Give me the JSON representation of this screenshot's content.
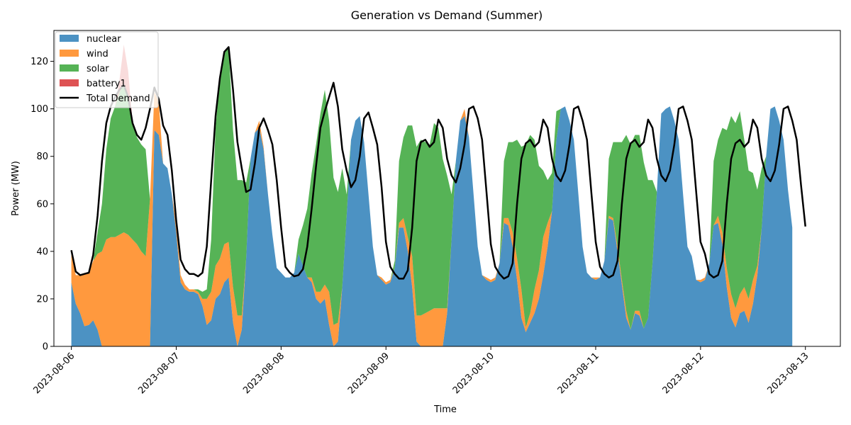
{
  "chart_data": {
    "type": "area",
    "title": "Generation vs Demand (Summer)",
    "xlabel": "Time",
    "ylabel": "Power (MW)",
    "xlim": [
      "2023-08-05T20:00",
      "2023-08-13T08:00"
    ],
    "ylim": [
      0,
      133
    ],
    "y_ticks": [
      0,
      20,
      40,
      60,
      80,
      100,
      120
    ],
    "x_ticks": [
      "2023-08-06",
      "2023-08-07",
      "2023-08-08",
      "2023-08-09",
      "2023-08-10",
      "2023-08-11",
      "2023-08-12",
      "2023-08-13"
    ],
    "x_start": "2023-08-06T00:00",
    "x_step_hours": 1,
    "grid": false,
    "legend_position": "top-left",
    "series": [
      {
        "name": "nuclear",
        "color": "#1f77b4",
        "values": [
          27,
          18,
          14,
          8.5,
          9,
          11,
          7,
          0,
          0,
          0,
          0,
          0,
          0,
          0,
          0,
          0,
          0,
          0,
          0,
          91,
          89,
          77,
          75,
          64,
          48,
          27,
          24,
          23,
          23,
          22,
          17,
          9,
          11,
          20,
          22,
          27,
          29,
          10,
          0,
          7,
          37,
          79,
          90,
          92,
          83,
          64,
          47,
          33,
          31,
          29,
          29,
          31,
          39,
          34,
          29,
          27,
          20,
          18,
          20,
          9,
          0,
          2,
          25,
          55,
          87,
          95,
          97,
          86,
          64,
          42,
          30,
          28,
          26,
          27,
          33,
          50,
          50,
          40,
          25,
          2,
          0,
          0,
          0,
          0,
          0,
          0,
          14,
          45,
          78,
          95,
          97,
          88,
          65,
          42,
          30,
          28,
          27,
          28,
          35,
          52,
          51,
          42,
          28,
          12,
          6,
          10,
          14,
          20,
          30,
          42,
          57,
          87,
          100,
          101,
          95,
          87,
          65,
          42,
          31,
          29,
          28,
          29,
          36,
          54,
          53,
          40,
          26,
          12,
          7,
          14,
          13,
          7.5,
          12,
          35,
          65,
          98,
          100,
          101,
          95,
          87,
          64,
          42,
          38,
          28,
          27,
          28,
          35,
          51,
          52,
          43,
          25,
          12,
          8,
          14,
          15,
          10,
          18,
          30,
          50,
          80,
          100,
          101,
          95,
          87,
          66,
          50
        ]
      },
      {
        "name": "wind",
        "color": "#ff7f0e",
        "values": [
          12,
          12,
          16,
          22,
          22,
          25,
          32,
          40,
          45,
          46,
          46,
          47,
          48,
          47,
          45,
          43,
          40,
          38,
          62,
          16,
          14,
          0,
          0,
          0,
          4,
          3,
          2,
          1,
          1,
          1,
          3,
          11,
          12,
          14,
          15,
          16,
          15,
          15,
          13,
          6,
          0,
          0,
          0,
          3,
          1,
          0,
          0,
          0,
          0,
          0,
          0,
          0,
          0,
          0,
          0,
          2,
          3,
          5,
          6,
          14,
          9,
          8,
          0,
          0,
          0,
          0,
          0,
          0,
          0,
          0,
          0,
          1,
          1,
          1,
          0,
          2,
          4,
          6,
          13,
          11,
          13,
          14,
          15,
          16,
          16,
          16,
          2,
          0,
          0,
          0,
          3,
          0,
          0,
          0,
          0,
          1,
          1,
          1,
          0,
          2,
          3,
          6,
          9,
          12,
          2,
          4,
          10,
          12,
          16,
          10,
          0,
          0,
          0,
          0,
          0,
          0,
          0,
          0,
          0,
          0,
          1,
          0,
          0,
          1,
          1,
          2,
          2,
          3,
          0,
          1,
          2,
          0,
          0,
          0,
          0,
          0,
          0,
          0,
          0,
          0,
          0,
          0,
          0,
          0,
          1,
          1,
          0,
          0,
          3,
          5,
          8,
          10,
          8,
          8,
          10,
          10,
          10,
          4,
          0,
          0,
          0,
          0,
          0,
          0,
          0,
          0,
          0,
          0
        ]
      },
      {
        "name": "solar",
        "color": "#2ca02c",
        "values": [
          0,
          0,
          0,
          0,
          0,
          0,
          9,
          20,
          38,
          50,
          55,
          60,
          62,
          58,
          49,
          45,
          45,
          45,
          0,
          0,
          0,
          0,
          0,
          0,
          0,
          0,
          0,
          0,
          0,
          1,
          3,
          4,
          22,
          58,
          76,
          81,
          82,
          66,
          57,
          57,
          32,
          0,
          0,
          0,
          0,
          0,
          0,
          0,
          0,
          0,
          0,
          0,
          6,
          17,
          29,
          44,
          62,
          75,
          82,
          72,
          62,
          55,
          50,
          9,
          0,
          0,
          0,
          0,
          0,
          0,
          0,
          0,
          0,
          0,
          3,
          26,
          34,
          47,
          55,
          71,
          74,
          72,
          70,
          78,
          76,
          63,
          56,
          19,
          0,
          0,
          0,
          0,
          0,
          0,
          0,
          0,
          0,
          0,
          0,
          24,
          32,
          38,
          50,
          60,
          77,
          75,
          63,
          44,
          28,
          18,
          16,
          12,
          0,
          0,
          0,
          0,
          0,
          0,
          0,
          0,
          0,
          0,
          0,
          24,
          32,
          44,
          58,
          74,
          78,
          74,
          74,
          70,
          58,
          35,
          0,
          0,
          0,
          0,
          0,
          0,
          0,
          0,
          0,
          0,
          0,
          0,
          0,
          27,
          32,
          44,
          58,
          75,
          78,
          77,
          62,
          54,
          45,
          32,
          25,
          0,
          0,
          0,
          0,
          0,
          0,
          0,
          0,
          0,
          0,
          0
        ]
      },
      {
        "name": "battery1",
        "color": "#d62728",
        "values": [
          0,
          0,
          0,
          0,
          0,
          0,
          0,
          0,
          0,
          0,
          0,
          5,
          17,
          11,
          0,
          0,
          0,
          0,
          0,
          0,
          0,
          0,
          0,
          0,
          0,
          0,
          0,
          0,
          0,
          0,
          0,
          0,
          0,
          0,
          0,
          0,
          0,
          0,
          0,
          0,
          0,
          0,
          0,
          0,
          0,
          0,
          0,
          0,
          0,
          0,
          0,
          0,
          0,
          0,
          0,
          0,
          0,
          0,
          0,
          0,
          0,
          0,
          0,
          0,
          0,
          0,
          0,
          0,
          0,
          0,
          0,
          0,
          0,
          0,
          0,
          0,
          0,
          0,
          0,
          0,
          0,
          0,
          0,
          0,
          0,
          0,
          0,
          0,
          0,
          0,
          0,
          0,
          0,
          0,
          0,
          0,
          0,
          0,
          0,
          0,
          0,
          0,
          0,
          0,
          0,
          0,
          0,
          0,
          0,
          0,
          0,
          0,
          0,
          0,
          0,
          0,
          0,
          0,
          0,
          0,
          0,
          0,
          0,
          0,
          0,
          0,
          0,
          0,
          0,
          0,
          0,
          0,
          0,
          0,
          0,
          0,
          0,
          0,
          0,
          0,
          0,
          0,
          0,
          0,
          0,
          0,
          0,
          0,
          0,
          0,
          0,
          0,
          0,
          0,
          0,
          0,
          0,
          0,
          0,
          0,
          0,
          0,
          0,
          0,
          0,
          0,
          0,
          0
        ]
      },
      {
        "name": "Total Demand",
        "color": "#000000",
        "style": "line",
        "values": [
          40.5,
          31.5,
          30,
          30.5,
          31,
          38.5,
          55,
          78,
          94,
          101,
          105,
          108,
          110,
          105,
          94,
          89,
          87,
          92,
          100,
          109,
          104,
          93,
          89,
          74,
          53,
          36.5,
          32.5,
          30.5,
          30.5,
          29.5,
          31,
          42,
          70,
          97,
          113,
          124,
          126,
          108,
          86,
          75,
          65,
          66,
          77,
          92,
          96,
          91,
          85,
          70,
          50,
          33.5,
          31,
          29.5,
          30,
          32.5,
          42,
          58,
          76,
          92,
          99,
          105,
          111,
          101,
          83,
          74,
          67,
          70,
          80,
          96,
          98.5,
          92,
          85,
          67,
          44,
          33.5,
          30.5,
          28.5,
          28.5,
          32,
          50,
          78,
          86,
          87,
          84,
          86,
          95.5,
          92,
          79,
          72,
          69,
          75,
          85,
          100,
          101,
          96,
          87,
          65,
          43,
          33.5,
          30.5,
          28.5,
          29.5,
          35,
          60,
          79,
          85.5,
          87,
          84,
          86,
          95.5,
          92,
          79,
          72,
          69.5,
          74,
          85,
          100,
          101,
          95,
          87,
          65,
          44,
          33.5,
          30.5,
          29,
          30,
          36,
          60,
          79,
          85.5,
          87,
          84,
          86,
          95.5,
          92,
          79,
          72,
          69.5,
          74,
          85,
          100,
          101,
          95,
          87,
          65,
          44,
          39,
          30.5,
          29,
          30,
          36,
          60,
          79,
          85.5,
          87,
          84,
          86,
          95.5,
          92,
          79,
          72,
          69.5,
          74,
          85,
          100,
          101,
          95,
          87,
          68,
          50.5
        ]
      }
    ]
  }
}
